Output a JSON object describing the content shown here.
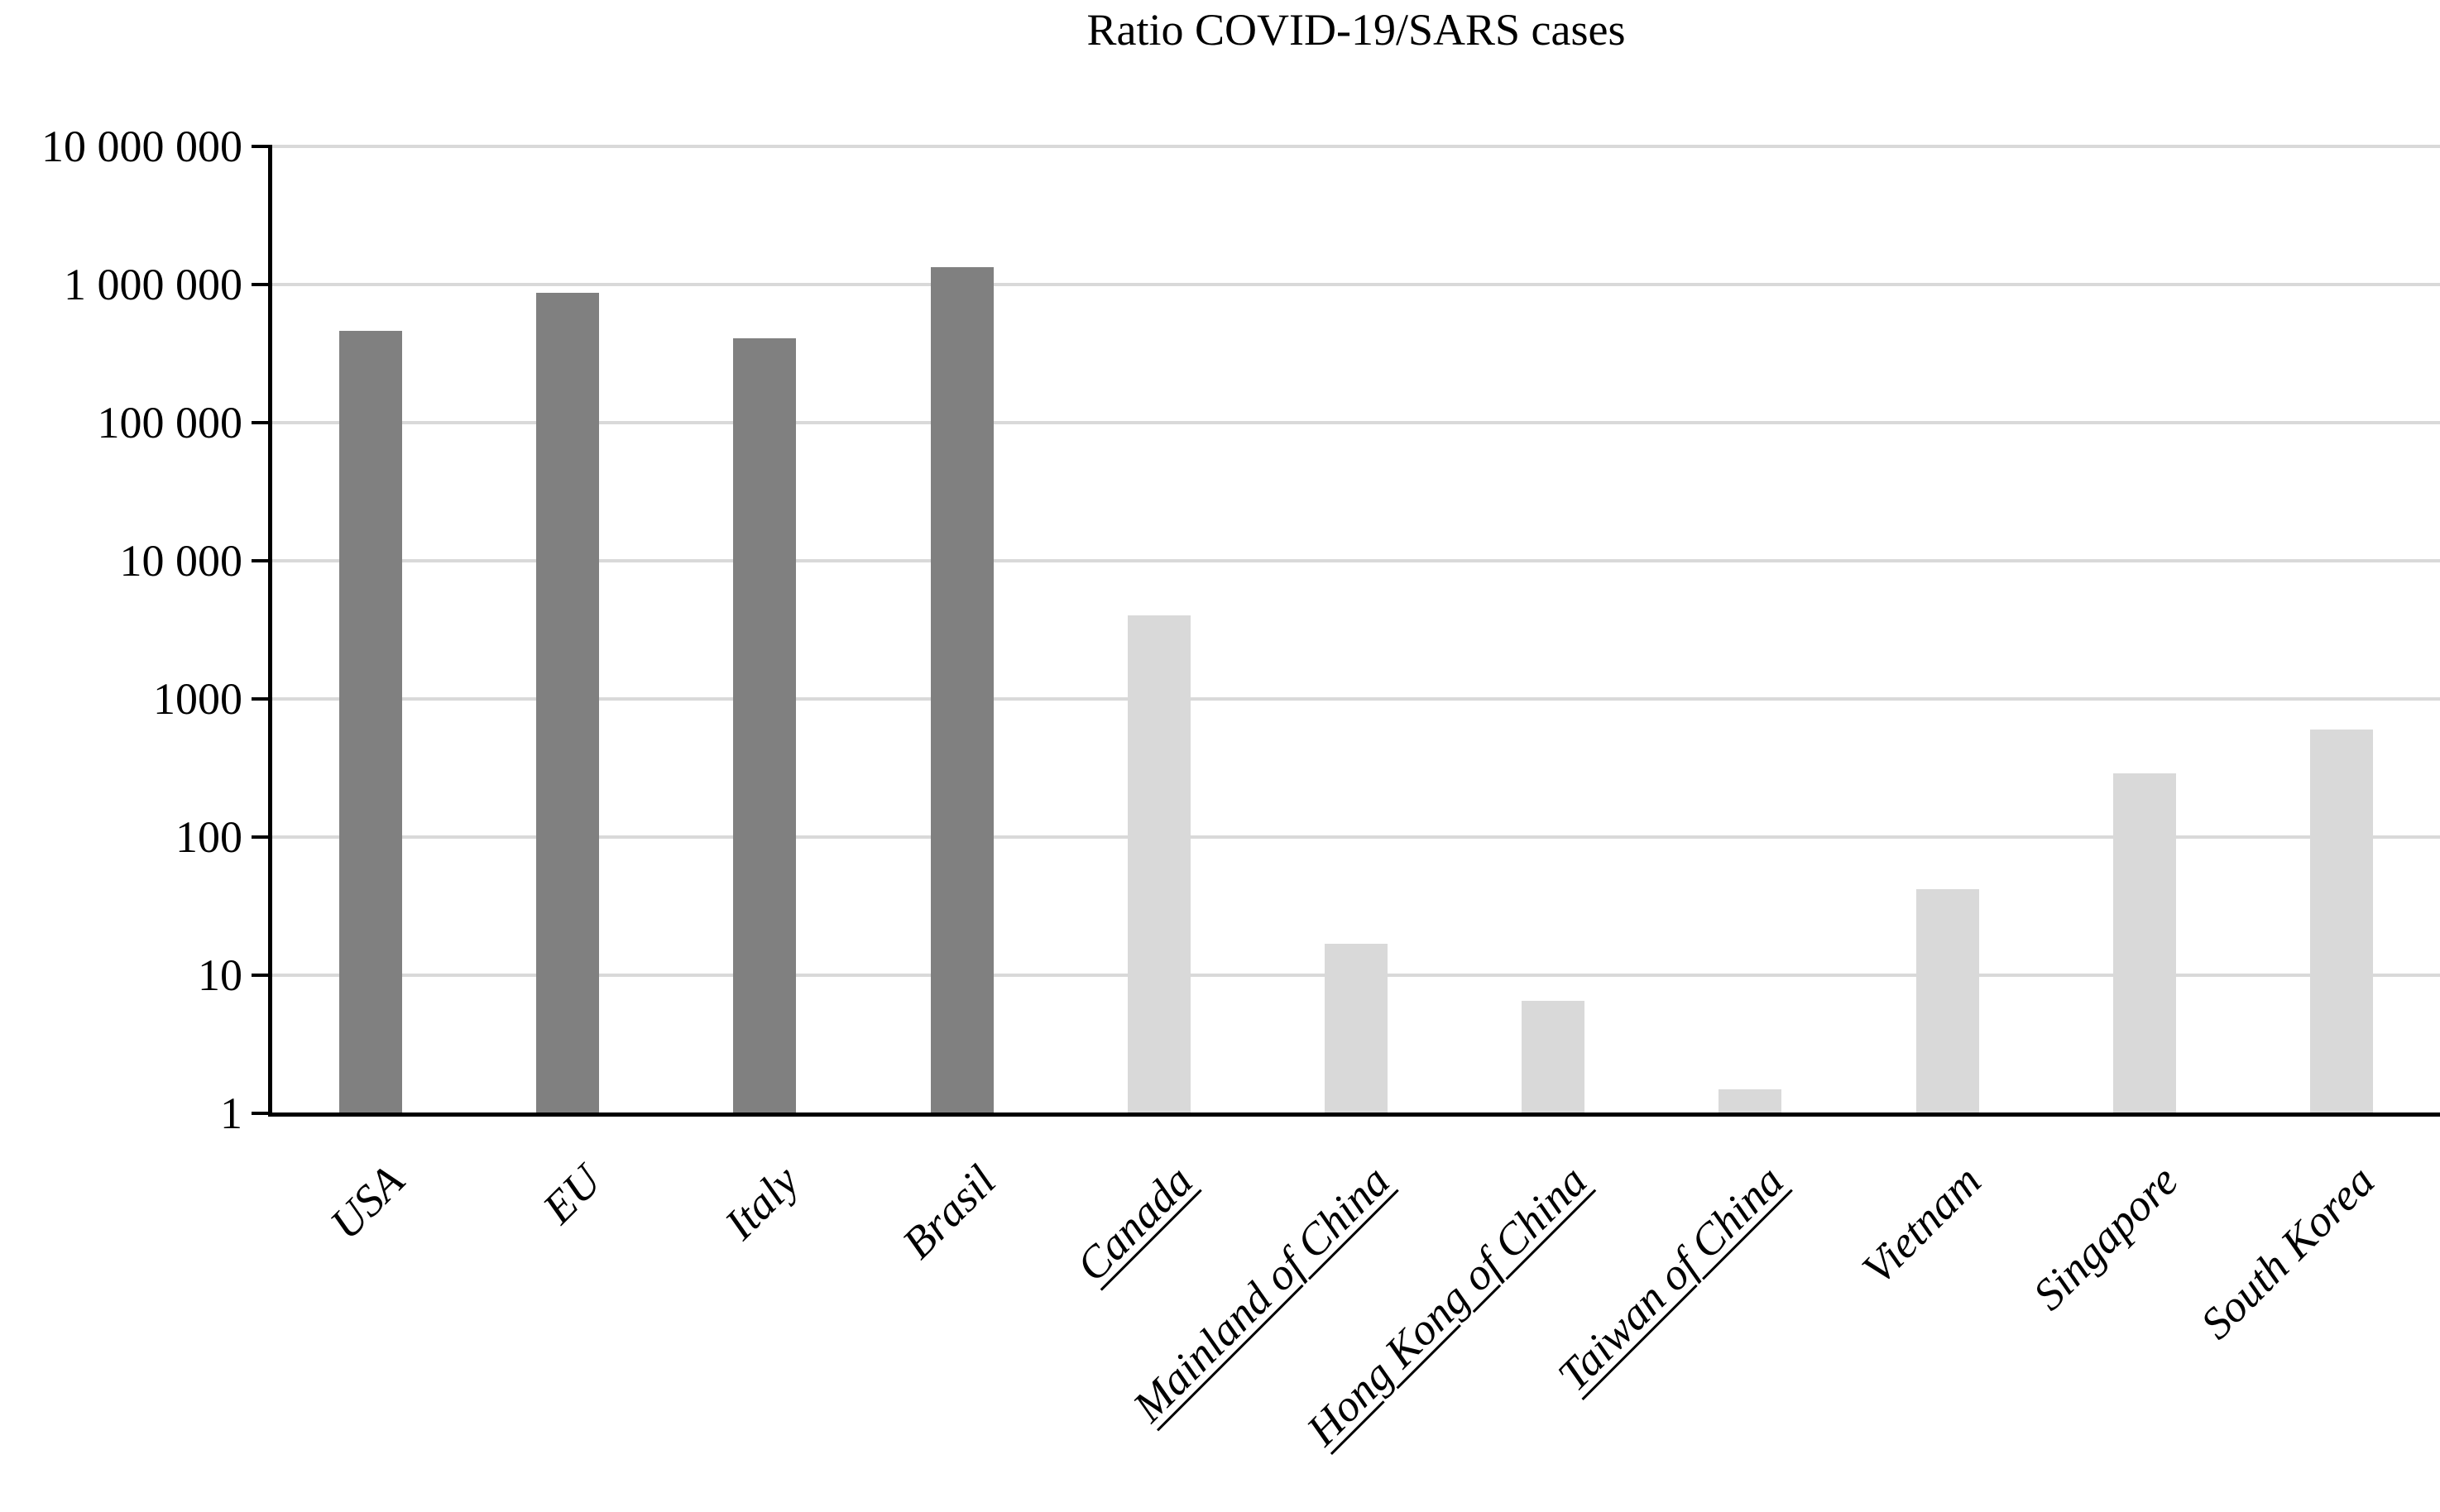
{
  "chart_data": {
    "type": "bar",
    "title": "Ratio COVID-19/SARS cases",
    "xlabel": "",
    "ylabel": "",
    "y_scale": "log10",
    "ylim": [
      1,
      10000000
    ],
    "grid": true,
    "legend": "none",
    "y_ticks": [
      {
        "value": 10000000,
        "label": "10 000 000"
      },
      {
        "value": 1000000,
        "label": "1 000 000"
      },
      {
        "value": 100000,
        "label": "100 000"
      },
      {
        "value": 10000,
        "label": "10 000"
      },
      {
        "value": 1000,
        "label": "1000"
      },
      {
        "value": 100,
        "label": "100"
      },
      {
        "value": 10,
        "label": "10"
      },
      {
        "value": 1,
        "label": "1"
      }
    ],
    "categories": [
      "USA",
      "EU",
      "Italy",
      "Brasil",
      "Canada",
      "Mainland of China",
      "Hong Kong of China",
      "Taiwan of China",
      "Vietnam",
      "Singapore",
      "South Korea"
    ],
    "values": [
      460000,
      870000,
      410000,
      1330000,
      4000,
      17,
      6.5,
      1.5,
      42,
      290,
      600
    ],
    "bars": [
      {
        "label": "USA",
        "value": 460000,
        "color_group": "dark",
        "underlined": false
      },
      {
        "label": "EU",
        "value": 870000,
        "color_group": "dark",
        "underlined": false
      },
      {
        "label": "Italy",
        "value": 410000,
        "color_group": "dark",
        "underlined": false
      },
      {
        "label": "Brasil",
        "value": 1330000,
        "color_group": "dark",
        "underlined": false
      },
      {
        "label": "Canada",
        "value": 4000,
        "color_group": "light",
        "underlined": true
      },
      {
        "label": "Mainland of China",
        "value": 17,
        "color_group": "light",
        "underlined": true
      },
      {
        "label": "Hong Kong of China",
        "value": 6.5,
        "color_group": "light",
        "underlined": true
      },
      {
        "label": "Taiwan of China",
        "value": 1.5,
        "color_group": "light",
        "underlined": true
      },
      {
        "label": "Vietnam",
        "value": 42,
        "color_group": "light",
        "underlined": false
      },
      {
        "label": "Singapore",
        "value": 290,
        "color_group": "light",
        "underlined": false
      },
      {
        "label": "South Korea",
        "value": 600,
        "color_group": "light",
        "underlined": false
      }
    ],
    "colors": {
      "dark_bar": "#808080",
      "light_bar": "#d9d9d9",
      "gridline": "#d9d9d9",
      "axis": "#000000",
      "text": "#000000"
    }
  }
}
